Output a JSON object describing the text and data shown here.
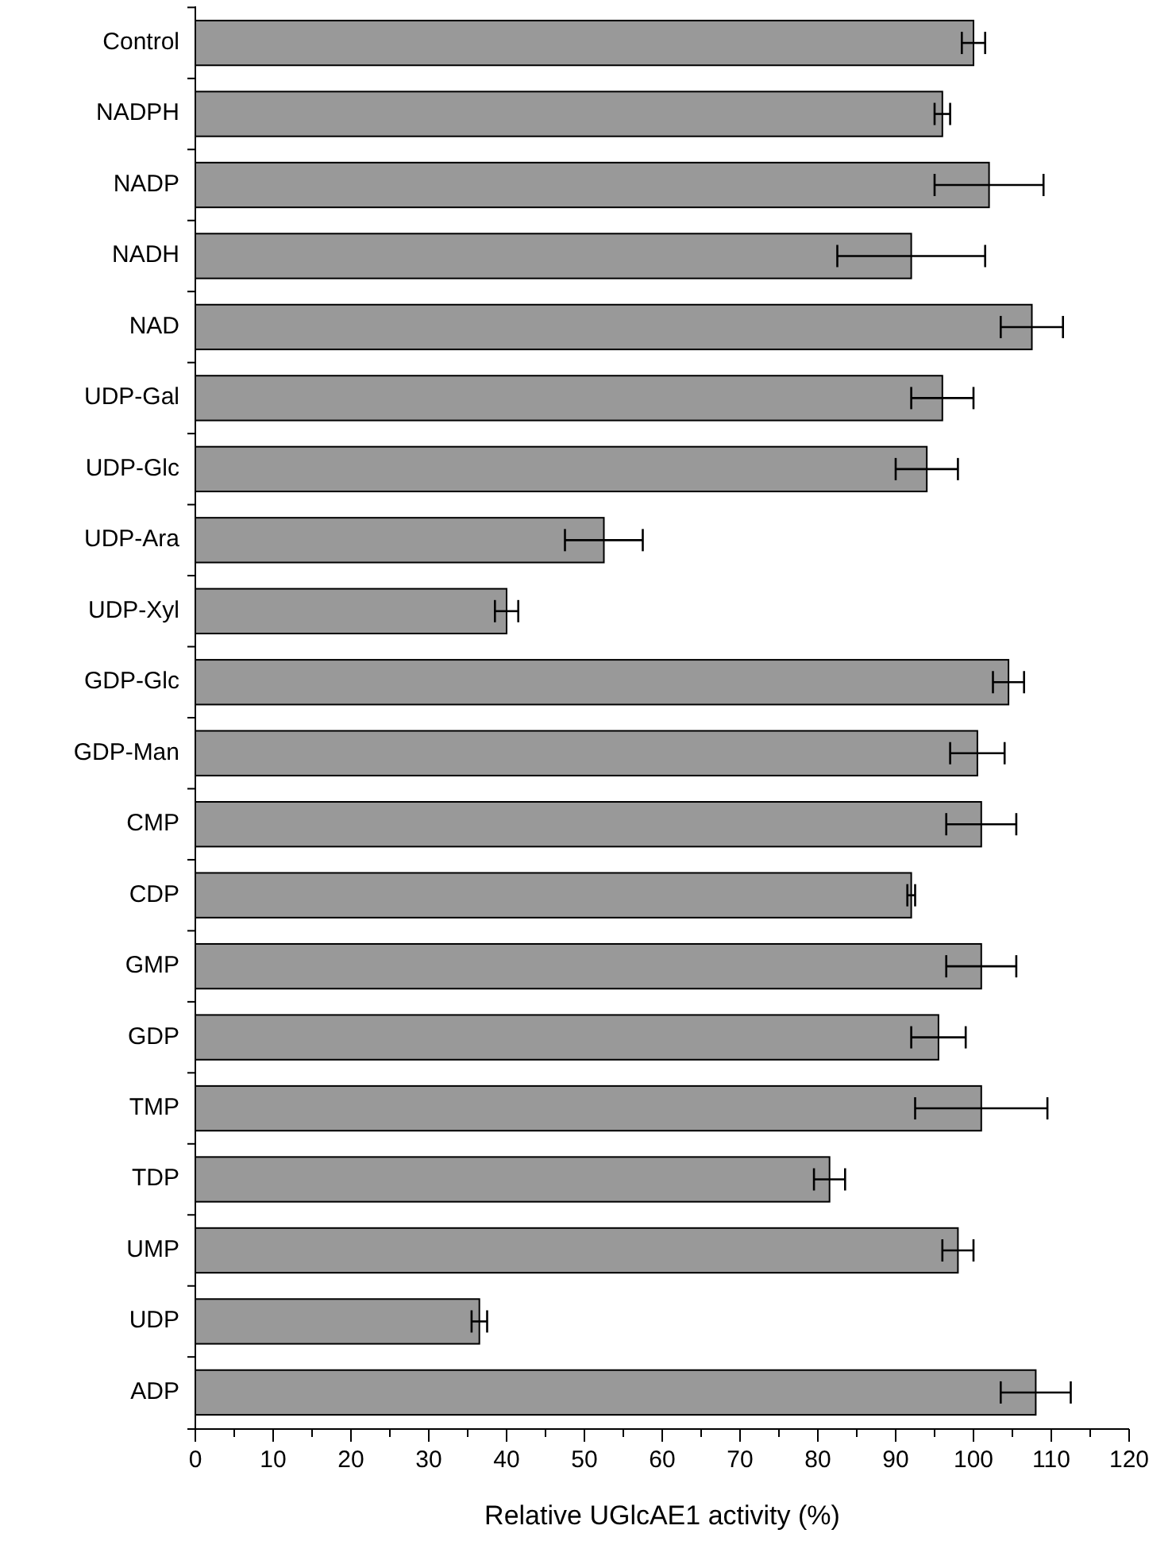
{
  "chart_data": {
    "type": "bar",
    "orientation": "horizontal",
    "xlabel": "Relative UGlcAE1  activity (%)",
    "categories": [
      "Control",
      "NADPH",
      "NADP",
      "NADH",
      "NAD",
      "UDP-Gal",
      "UDP-Glc",
      "UDP-Ara",
      "UDP-Xyl",
      "GDP-Glc",
      "GDP-Man",
      "CMP",
      "CDP",
      "GMP",
      "GDP",
      "TMP",
      "TDP",
      "UMP",
      "UDP",
      "ADP"
    ],
    "values": [
      100,
      96,
      102,
      92,
      107.5,
      96,
      94,
      52.5,
      40,
      104.5,
      100.5,
      101,
      92,
      101,
      95.5,
      101,
      81.5,
      98,
      36.5,
      108
    ],
    "errors": [
      1.5,
      1,
      7,
      9.5,
      4,
      4,
      4,
      5,
      1.5,
      2,
      3.5,
      4.5,
      0.5,
      4.5,
      3.5,
      8.5,
      2,
      2,
      1,
      4.5
    ],
    "color": "#999999",
    "xlim": [
      0,
      120
    ],
    "xticks": [
      0,
      {
        "value": 5,
        "label": null
      },
      10,
      {
        "value": 15,
        "label": null
      },
      20,
      {
        "value": 25,
        "label": null
      },
      30,
      {
        "value": 35,
        "label": null
      },
      40,
      {
        "value": 45,
        "label": null
      },
      50,
      {
        "value": 55,
        "label": null
      },
      60,
      {
        "value": 65,
        "label": null
      },
      70,
      {
        "value": 75,
        "label": null
      },
      80,
      {
        "value": 85,
        "label": null
      },
      90,
      {
        "value": 95,
        "label": null
      },
      100,
      {
        "value": 105,
        "label": null
      },
      110,
      {
        "value": 115,
        "label": null
      },
      120
    ],
    "grid": false
  }
}
